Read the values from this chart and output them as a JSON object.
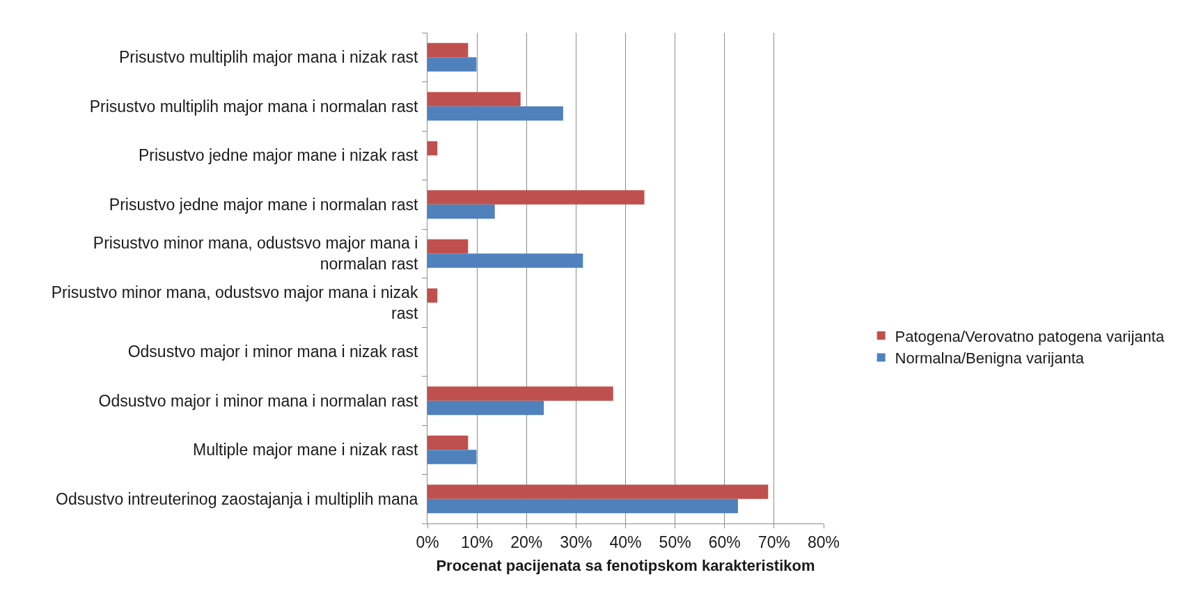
{
  "chart_data": {
    "type": "bar",
    "orientation": "horizontal",
    "categories": [
      "Prisustvo multiplih major mana i nizak rast",
      "Prisustvo multiplih major mana i normalan rast",
      "Prisustvo jedne major mane i nizak rast",
      "Prisustvo jedne major mane i normalan rast",
      "Prisustvo minor mana, odustsvo major mana i normalan rast",
      "Prisustvo minor mana, odustsvo major mana i nizak rast",
      "Odsustvo major i minor mana i nizak rast",
      "Odsustvo major i minor mana i normalan rast",
      "Multiple major mane i nizak rast",
      "Odsustvo intreuterinog zaostajanja i multiplih mana"
    ],
    "series": [
      {
        "name": "Patogena/Verovatno patogena varijanta",
        "color": "#c0504d",
        "values": [
          8.2,
          18.8,
          2.0,
          43.8,
          8.2,
          2.0,
          0,
          37.5,
          8.2,
          68.8
        ]
      },
      {
        "name": "Normalna/Benigna varijanta",
        "color": "#4f81bd",
        "values": [
          9.9,
          27.4,
          0,
          13.6,
          31.4,
          0,
          0,
          23.5,
          9.9,
          62.7
        ]
      }
    ],
    "xlabel": "Procenat pacijenata sa fenotipskom karakteristikom",
    "xlim": [
      0,
      80
    ],
    "xticks": [
      {
        "value": 0,
        "label": "0%"
      },
      {
        "value": 10,
        "label": "10%"
      },
      {
        "value": 20,
        "label": "20%"
      },
      {
        "value": 30,
        "label": "30%"
      },
      {
        "value": 40,
        "label": "40%"
      },
      {
        "value": 50,
        "label": "50%"
      },
      {
        "value": 60,
        "label": "60%"
      },
      {
        "value": 70,
        "label": "70%"
      },
      {
        "value": 80,
        "label": "80%"
      }
    ],
    "grid": "x",
    "legend": "right"
  }
}
